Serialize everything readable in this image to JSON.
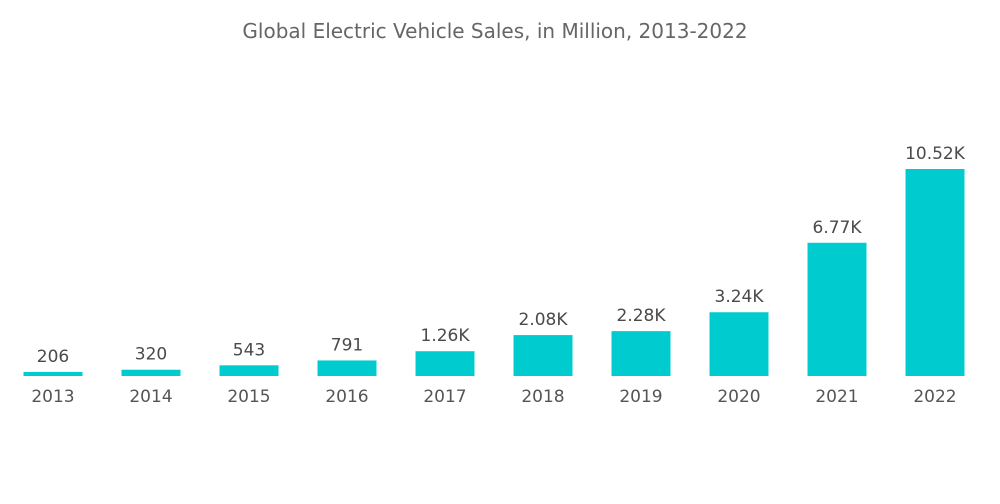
{
  "chart_data": {
    "type": "bar",
    "title": "Global Electric Vehicle Sales, in Million, 2013-2022",
    "xlabel": "",
    "ylabel": "",
    "categories": [
      "2013",
      "2014",
      "2015",
      "2016",
      "2017",
      "2018",
      "2019",
      "2020",
      "2021",
      "2022"
    ],
    "values": [
      206,
      320,
      543,
      791,
      1260,
      2080,
      2280,
      3240,
      6770,
      10520
    ],
    "data_labels": [
      "206",
      "320",
      "543",
      "791",
      "1.26K",
      "2.08K",
      "2.28K",
      "3.24K",
      "6.77K",
      "10.52K"
    ],
    "ylim": [
      0,
      10520
    ],
    "grid": false,
    "legend": "none",
    "bar_color": "#00CCD0"
  }
}
